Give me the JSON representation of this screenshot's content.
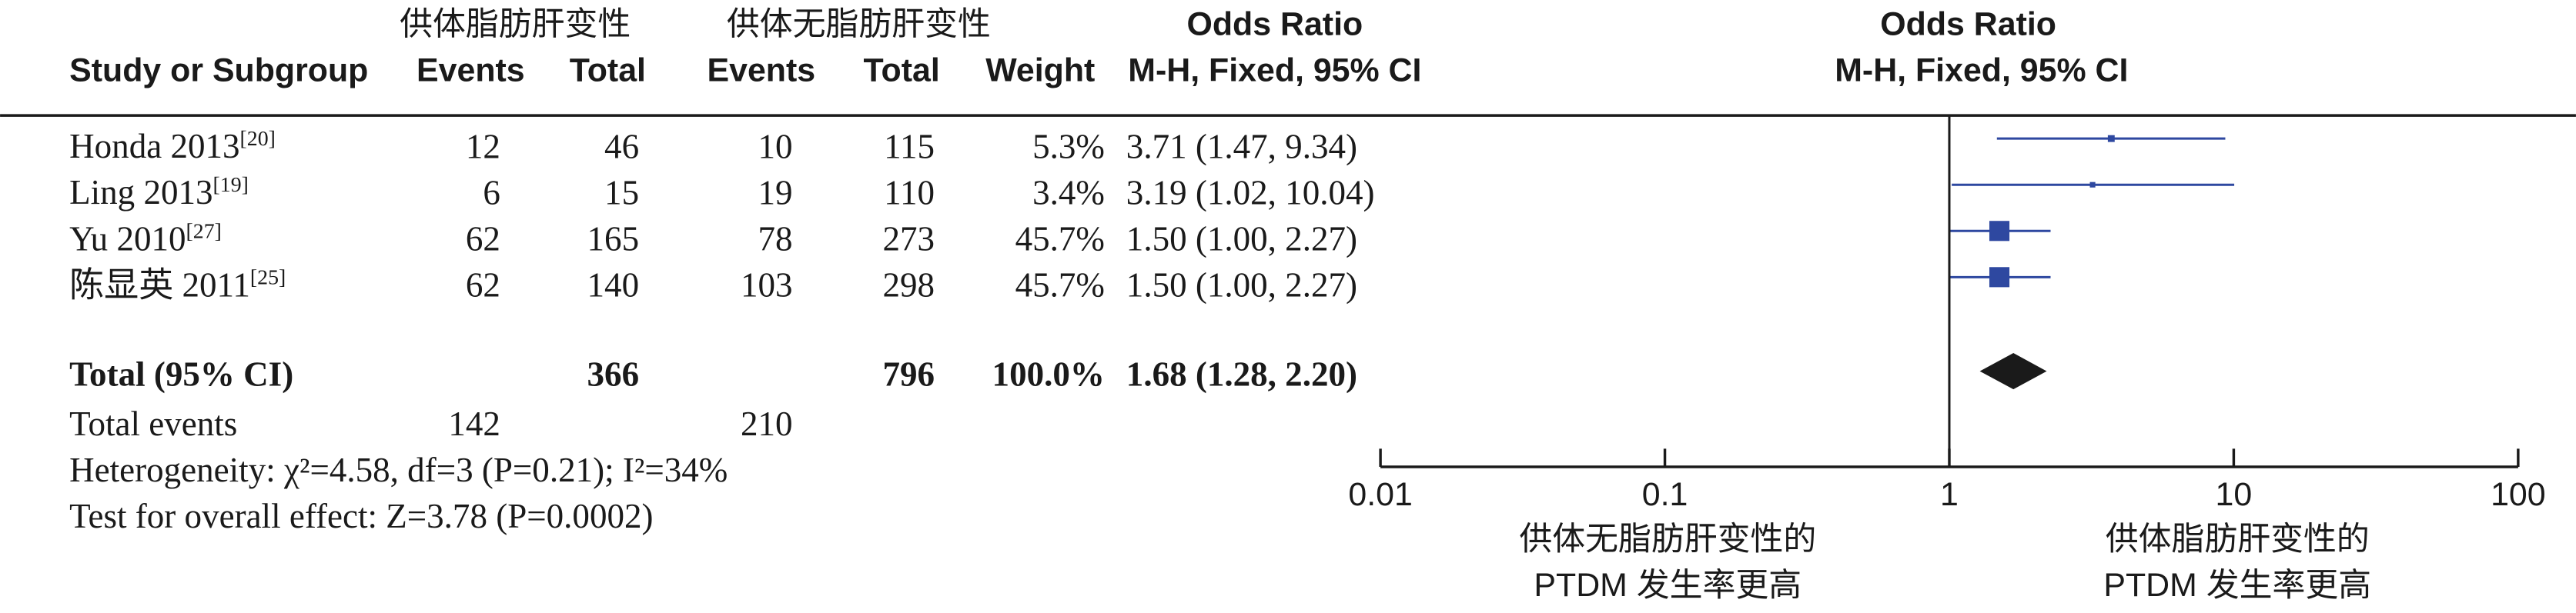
{
  "chart_data": {
    "type": "forest",
    "group_headers": [
      "供体脂肪肝变性",
      "供体无脂肪肝变性"
    ],
    "effect_title": "Odds Ratio",
    "effect_method": "M-H, Fixed, 95% CI",
    "column_headers": [
      "Study or Subgroup",
      "Events",
      "Total",
      "Events",
      "Total",
      "Weight"
    ],
    "studies": [
      {
        "name": "Honda 2013",
        "ref": "[20]",
        "events1": 12,
        "total1": 46,
        "events2": 10,
        "total2": 115,
        "weight": {
          "value": 5.3,
          "label": "5.3%"
        },
        "or": 3.71,
        "lo": 1.47,
        "hi": 9.34,
        "ci_label": "3.71 (1.47, 9.34)"
      },
      {
        "name": "Ling 2013",
        "ref": "[19]",
        "events1": 6,
        "total1": 15,
        "events2": 19,
        "total2": 110,
        "weight": {
          "value": 3.4,
          "label": "3.4%"
        },
        "or": 3.19,
        "lo": 1.02,
        "hi": 10.04,
        "ci_label": "3.19 (1.02, 10.04)"
      },
      {
        "name": "Yu 2010",
        "ref": "[27]",
        "events1": 62,
        "total1": 165,
        "events2": 78,
        "total2": 273,
        "weight": {
          "value": 45.7,
          "label": "45.7%"
        },
        "or": 1.5,
        "lo": 1.0,
        "hi": 2.27,
        "ci_label": "1.50 (1.00, 2.27)"
      },
      {
        "name": "陈显英 2011",
        "ref": "[25]",
        "events1": 62,
        "total1": 140,
        "events2": 103,
        "total2": 298,
        "weight": {
          "value": 45.7,
          "label": "45.7%"
        },
        "or": 1.5,
        "lo": 1.0,
        "hi": 2.27,
        "ci_label": "1.50 (1.00, 2.27)"
      }
    ],
    "total": {
      "name": "Total (95% CI)",
      "total1": 366,
      "total2": 796,
      "weight": {
        "value": 100,
        "label": "100.0%"
      },
      "or": 1.68,
      "lo": 1.28,
      "hi": 2.2,
      "ci_label": "1.68 (1.28, 2.20)"
    },
    "total_events": {
      "name": "Total events",
      "events1": 142,
      "events2": 210
    },
    "heterogeneity": "Heterogeneity: χ²=4.58, df=3 (P=0.21); I²=34%",
    "overall_effect": "Test for overall effect: Z=3.78 (P=0.0002)",
    "log_x": true,
    "xlim": [
      0.01,
      100
    ],
    "xticks": [
      0.01,
      0.1,
      1,
      10,
      100
    ],
    "x_label_left": [
      "供体无脂肪肝变性的",
      "PTDM 发生率更高"
    ],
    "x_label_right": [
      "供体脂肪肝变性的",
      "PTDM 发生率更高"
    ],
    "marker_color": "#2e48a0",
    "diamond_color": "#1a1a1a"
  }
}
